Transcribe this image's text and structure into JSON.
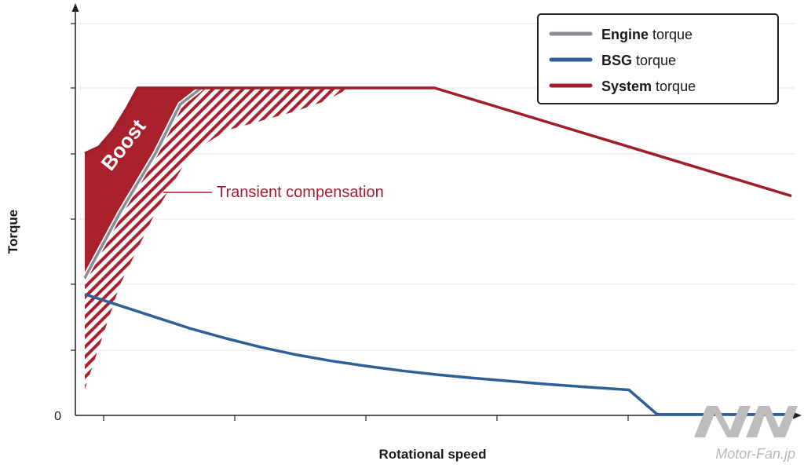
{
  "chart_data": {
    "type": "line",
    "title": "",
    "xlabel": "Rotational speed",
    "ylabel": "Torque",
    "xlim": [
      0,
      100
    ],
    "ylim": [
      0,
      100
    ],
    "y_tick_labels": [
      "0"
    ],
    "grid": "horizontal",
    "legend_placement": "top-right",
    "colors": {
      "engine": "#8a8e92",
      "bsg": "#2e5f96",
      "system": "#a01e2b",
      "boost": "#a8212d",
      "axis": "#222222",
      "grid": "#e6e6e6"
    },
    "series": [
      {
        "key": "engine",
        "name_bold": "Engine",
        "name_rest": " torque",
        "x": [
          0,
          5,
          10,
          13.5,
          16.5
        ],
        "y": [
          42,
          62,
          80,
          95,
          100
        ]
      },
      {
        "key": "bsg",
        "name_bold": "BSG",
        "name_rest": " torque",
        "x": [
          0,
          5,
          10,
          15,
          20,
          25,
          30,
          35,
          40,
          45,
          50,
          55,
          60,
          65,
          70,
          77,
          81,
          100
        ],
        "y": [
          37,
          33.5,
          30,
          26.5,
          23.5,
          20.8,
          18.5,
          16.6,
          15,
          13.6,
          12.4,
          11.4,
          10.5,
          9.6,
          8.8,
          7.8,
          0.3,
          0.3
        ]
      },
      {
        "key": "system",
        "name_bold": "System",
        "name_rest": " torque",
        "x": [
          0,
          2,
          4,
          6,
          7.5,
          49.5,
          100
        ],
        "y": [
          80,
          82,
          87,
          94,
          100,
          100,
          67
        ]
      }
    ],
    "transient_compensation_upper": {
      "x": [
        0,
        5,
        10,
        15,
        20,
        25,
        30,
        34,
        37.5
      ],
      "y": [
        8,
        40,
        62,
        80,
        87,
        90,
        93,
        96,
        100
      ]
    },
    "annotations": {
      "boost": "Boost",
      "transient": "Transient compensation"
    }
  },
  "watermark": "Motor-Fan.jp"
}
